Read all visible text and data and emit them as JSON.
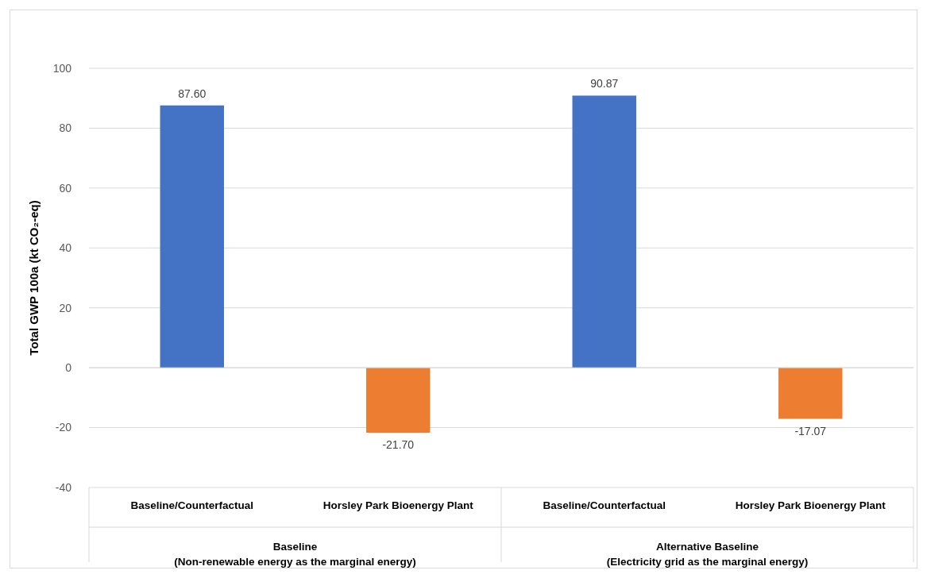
{
  "chart_data": {
    "type": "bar",
    "ylabel": "Total GWP 100a (kt CO₂-eq)",
    "categories": [
      "Baseline/Counterfactual",
      "Horsley Park Bioenergy Plant",
      "Baseline/Counterfactual",
      "Horsley Park Bioenergy Plant"
    ],
    "values": [
      87.6,
      -21.7,
      90.87,
      -17.07
    ],
    "colors": [
      "#4472c4",
      "#ed7d31",
      "#4472c4",
      "#ed7d31"
    ],
    "value_labels": [
      "87.60",
      "-21.70",
      "90.87",
      "-17.07"
    ],
    "annotations": [
      "Baseline\n(Non-renewable energy as the marginal energy)",
      "Alternative Baseline\n(Electricity grid as the marginal energy)"
    ],
    "ylim": [
      -40,
      100
    ],
    "yticks": [
      -40,
      -20,
      0,
      20,
      40,
      60,
      80,
      100
    ],
    "grid": "y"
  }
}
